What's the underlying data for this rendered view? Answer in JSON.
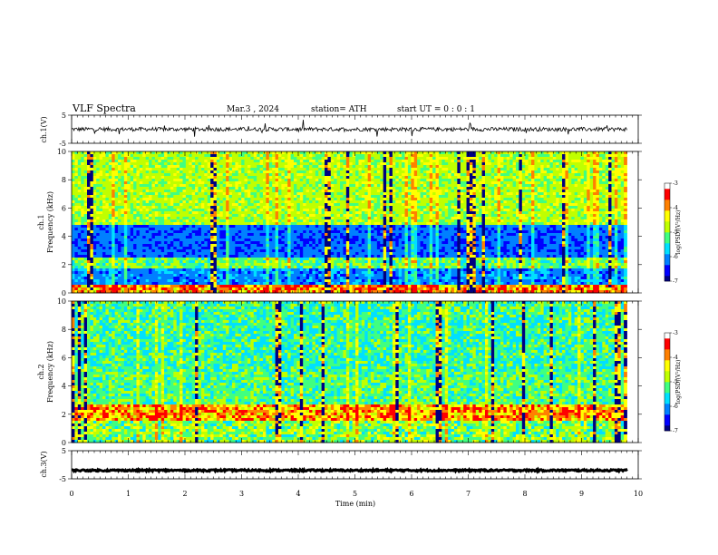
{
  "header": {
    "title": "VLF  Spectra",
    "date": "Mar.3  , 2024",
    "station": "station= ATH",
    "start_ut": "start  UT  =    0  : 0   : 1"
  },
  "chart_data": [
    {
      "type": "line",
      "ylabel": "ch.1(V)",
      "ylim": [
        -5,
        5
      ],
      "y_ticks": [
        "5",
        "-5"
      ],
      "xlim": [
        0,
        10
      ],
      "data_x_end": 9.8,
      "description_values": {
        "baseline": 0,
        "noise_amplitude": 0.7
      }
    },
    {
      "type": "heatmap",
      "ylabel_line1": "ch.1",
      "ylabel_line2": "Frequency  (kHz)",
      "ylim": [
        0,
        10
      ],
      "y_ticks": [
        "0",
        "2",
        "4",
        "6",
        "8",
        "10"
      ],
      "xlim": [
        0,
        10
      ],
      "colorbar": {
        "label": "log(PSD)(V²/Hz)",
        "min": -7,
        "max": -3,
        "ticks": [
          "-3",
          "-4",
          "-5",
          "-6",
          "-7"
        ]
      }
    },
    {
      "type": "heatmap",
      "ylabel_line1": "ch.2",
      "ylabel_line2": "Frequency  (kHz)",
      "ylim": [
        0,
        10
      ],
      "y_ticks": [
        "0",
        "2",
        "4",
        "6",
        "8",
        "10"
      ],
      "xlim": [
        0,
        10
      ],
      "colorbar": {
        "label": "log(PSD)(V²/Hz)",
        "min": -7,
        "max": -3,
        "ticks": [
          "-3",
          "-4",
          "-5",
          "-6",
          "-7"
        ]
      }
    },
    {
      "type": "line",
      "ylabel": "ch.3(V)",
      "ylim": [
        -5,
        5
      ],
      "y_ticks": [
        "5",
        "-5"
      ],
      "xlim": [
        0,
        10
      ],
      "data_x_end": 9.8,
      "description_values": {
        "baseline": -2,
        "noise_amplitude": 0.3
      }
    }
  ],
  "x_axis": {
    "label": "Time  (min)",
    "ticks": [
      "0",
      "1",
      "2",
      "3",
      "4",
      "5",
      "6",
      "7",
      "8",
      "9",
      "10"
    ]
  },
  "colormap": [
    "#000080",
    "#0000ff",
    "#0080ff",
    "#00e0ff",
    "#40ff80",
    "#c0ff00",
    "#ffff00",
    "#ff8000",
    "#ff0000",
    "#ffffff"
  ]
}
